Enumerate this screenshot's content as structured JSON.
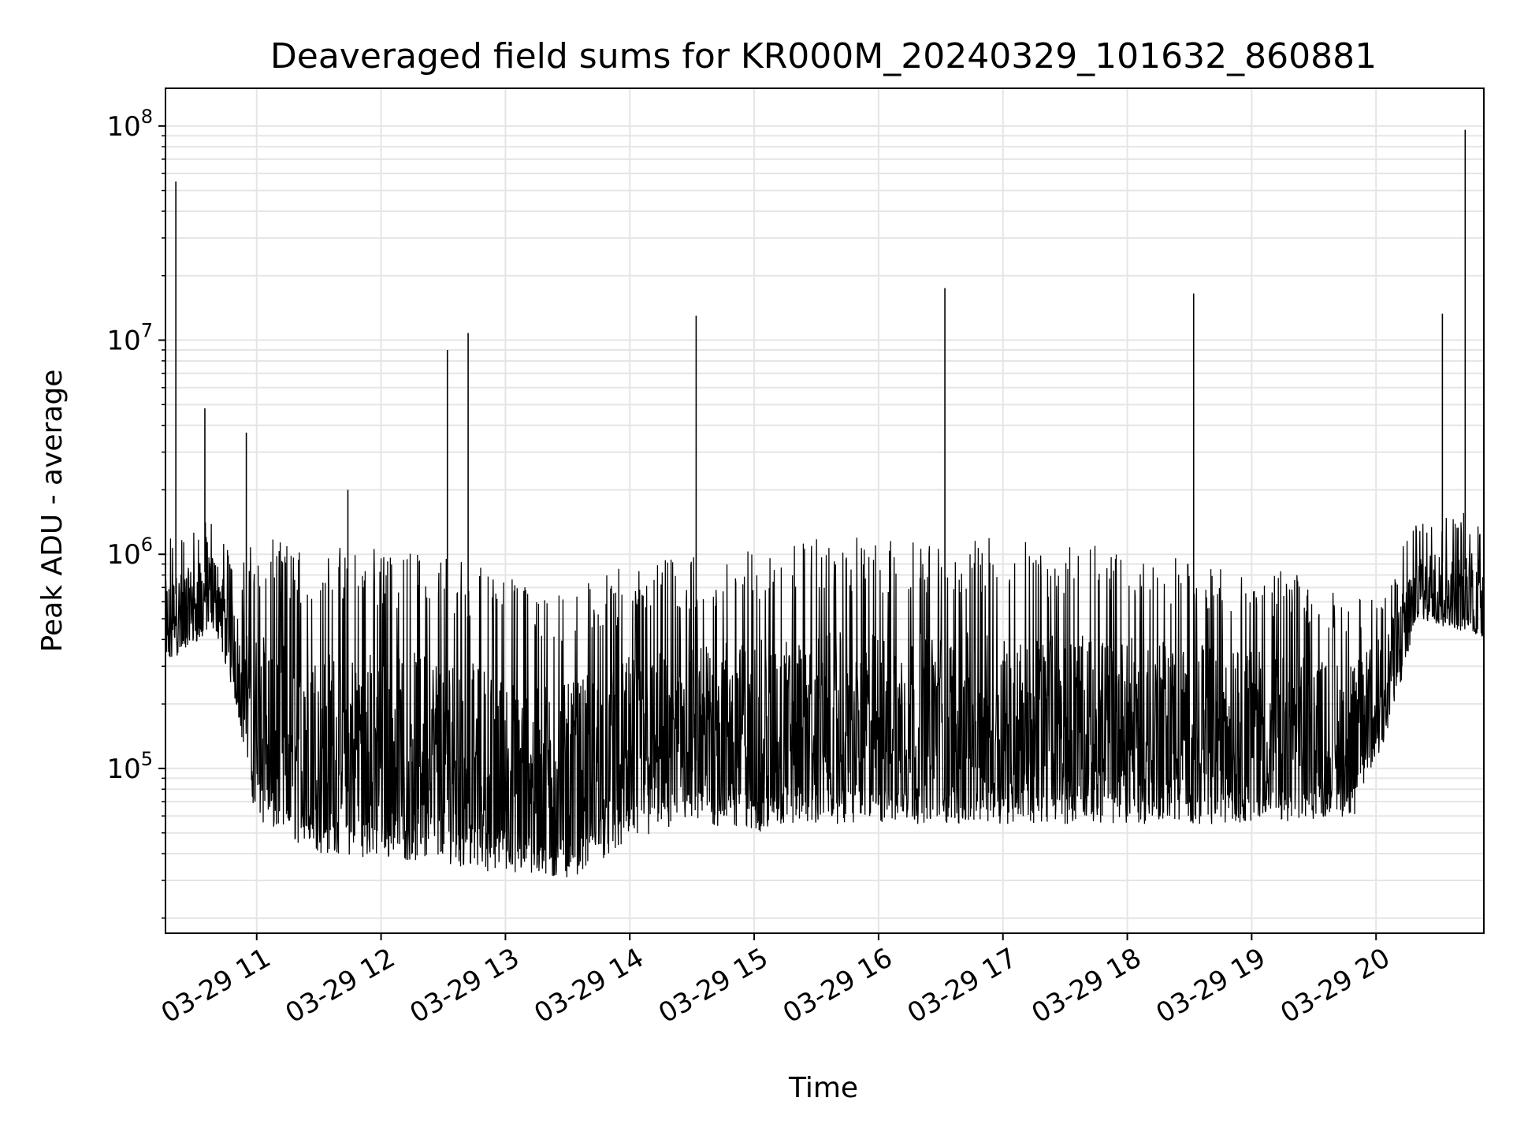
{
  "chart_data": {
    "type": "line",
    "title": "Deaveraged field sums for KR000M_20240329_101632_860881",
    "xlabel": "Time",
    "ylabel": "Peak ADU - average",
    "yscale": "log",
    "grid": true,
    "line_color": "#000000",
    "grid_color": "#e5e5e5",
    "xlim": [
      "2024-03-29 10:16",
      "2024-03-29 20:52"
    ],
    "ylim": [
      17000,
      150000000
    ],
    "x_ticks": [
      {
        "x": "2024-03-29 11:00",
        "label": "03-29 11"
      },
      {
        "x": "2024-03-29 12:00",
        "label": "03-29 12"
      },
      {
        "x": "2024-03-29 13:00",
        "label": "03-29 13"
      },
      {
        "x": "2024-03-29 14:00",
        "label": "03-29 14"
      },
      {
        "x": "2024-03-29 15:00",
        "label": "03-29 15"
      },
      {
        "x": "2024-03-29 16:00",
        "label": "03-29 16"
      },
      {
        "x": "2024-03-29 17:00",
        "label": "03-29 17"
      },
      {
        "x": "2024-03-29 18:00",
        "label": "03-29 18"
      },
      {
        "x": "2024-03-29 19:00",
        "label": "03-29 19"
      },
      {
        "x": "2024-03-29 20:00",
        "label": "03-29 20"
      }
    ],
    "y_ticks": [
      {
        "value": 100000,
        "base": "10",
        "exp": "5"
      },
      {
        "value": 1000000,
        "base": "10",
        "exp": "6"
      },
      {
        "value": 10000000,
        "base": "10",
        "exp": "7"
      },
      {
        "value": 100000000,
        "base": "10",
        "exp": "8"
      }
    ],
    "envelope": [
      {
        "x": "2024-03-29 10:16",
        "low": 300000,
        "high": 1200000
      },
      {
        "x": "2024-03-29 10:40",
        "low": 450000,
        "high": 1500000
      },
      {
        "x": "2024-03-29 10:50",
        "low": 200000,
        "high": 900000
      },
      {
        "x": "2024-03-29 11:00",
        "low": 55000,
        "high": 1200000
      },
      {
        "x": "2024-03-29 11:30",
        "low": 40000,
        "high": 1100000
      },
      {
        "x": "2024-03-29 12:00",
        "low": 38000,
        "high": 1100000
      },
      {
        "x": "2024-03-29 12:30",
        "low": 36000,
        "high": 1100000
      },
      {
        "x": "2024-03-29 13:00",
        "low": 32000,
        "high": 800000
      },
      {
        "x": "2024-03-29 13:30",
        "low": 30000,
        "high": 700000
      },
      {
        "x": "2024-03-29 14:00",
        "low": 45000,
        "high": 900000
      },
      {
        "x": "2024-03-29 14:30",
        "low": 55000,
        "high": 1000000
      },
      {
        "x": "2024-03-29 15:00",
        "low": 50000,
        "high": 1100000
      },
      {
        "x": "2024-03-29 15:30",
        "low": 55000,
        "high": 1200000
      },
      {
        "x": "2024-03-29 16:00",
        "low": 55000,
        "high": 1200000
      },
      {
        "x": "2024-03-29 17:00",
        "low": 55000,
        "high": 1200000
      },
      {
        "x": "2024-03-29 18:00",
        "low": 55000,
        "high": 1100000
      },
      {
        "x": "2024-03-29 19:00",
        "low": 55000,
        "high": 900000
      },
      {
        "x": "2024-03-29 19:50",
        "low": 60000,
        "high": 700000
      },
      {
        "x": "2024-03-29 20:06",
        "low": 150000,
        "high": 800000
      },
      {
        "x": "2024-03-29 20:20",
        "low": 500000,
        "high": 1500000
      },
      {
        "x": "2024-03-29 20:52",
        "low": 400000,
        "high": 1600000
      }
    ],
    "spikes": [
      {
        "x": "2024-03-29 10:21",
        "y": 55000000
      },
      {
        "x": "2024-03-29 10:35",
        "y": 4800000
      },
      {
        "x": "2024-03-29 10:55",
        "y": 3700000
      },
      {
        "x": "2024-03-29 11:44",
        "y": 2000000
      },
      {
        "x": "2024-03-29 12:32",
        "y": 9000000
      },
      {
        "x": "2024-03-29 12:42",
        "y": 10800000
      },
      {
        "x": "2024-03-29 14:32",
        "y": 13000000
      },
      {
        "x": "2024-03-29 16:32",
        "y": 17500000
      },
      {
        "x": "2024-03-29 18:32",
        "y": 16500000
      },
      {
        "x": "2024-03-29 20:32",
        "y": 13300000
      },
      {
        "x": "2024-03-29 20:43",
        "y": 96000000
      }
    ]
  }
}
